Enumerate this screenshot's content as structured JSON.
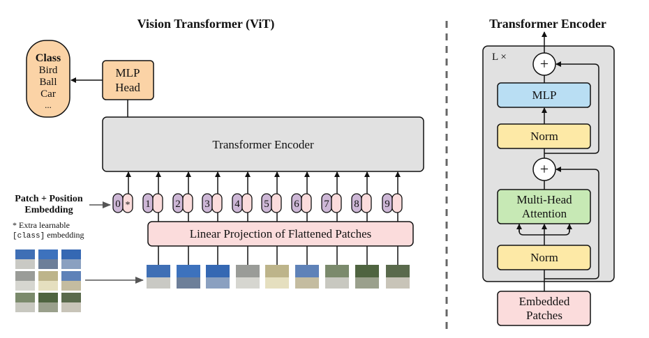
{
  "vit": {
    "title": "Vision Transformer (ViT)",
    "class_box": {
      "heading": "Class",
      "items": [
        "Bird",
        "Ball",
        "Car",
        "..."
      ]
    },
    "mlp_head": [
      "MLP",
      "Head"
    ],
    "encoder_label": "Transformer Encoder",
    "embedding_label": [
      "Patch + Position",
      "Embedding"
    ],
    "note_line1": "* Extra learnable",
    "note_code": "[class]",
    "note_rest": " embedding",
    "tokens": [
      "0",
      "1",
      "2",
      "3",
      "4",
      "5",
      "6",
      "7",
      "8",
      "9"
    ],
    "class_token_symbol": "*",
    "projection_label": "Linear Projection of Flattened Patches"
  },
  "encoder": {
    "title": "Transformer Encoder",
    "repeat_label": "L ×",
    "plus_symbol": "+",
    "mlp_label": "MLP",
    "norm_label": "Norm",
    "attention_label": [
      "Multi-Head",
      "Attention"
    ],
    "input_label": [
      "Embedded",
      "Patches"
    ]
  },
  "colors": {
    "orange": "#fbd3a6",
    "gray": "#e1e1e1",
    "pink": "#fbdcdc",
    "purple": "#cdb7d6",
    "blue": "#b9def3",
    "yellow": "#fde9a6",
    "green": "#c7e9b5"
  }
}
